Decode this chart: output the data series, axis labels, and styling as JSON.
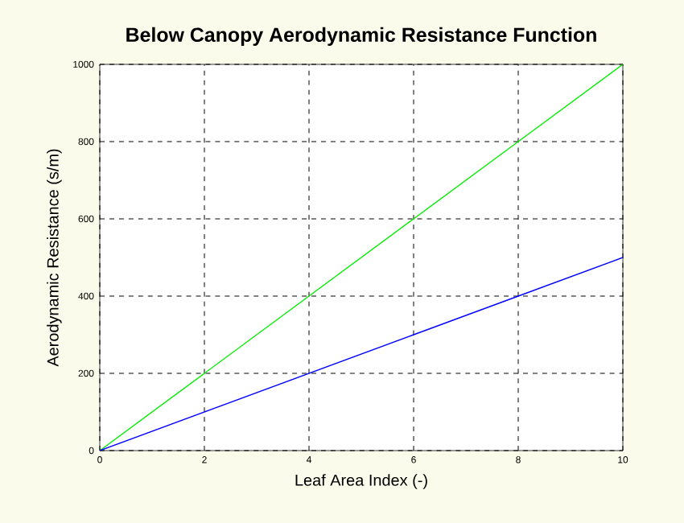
{
  "chart_data": {
    "type": "line",
    "title": "Below Canopy Aerodynamic Resistance Function",
    "xlabel": "Leaf Area Index (-)",
    "ylabel": "Aerodynamic Resistance (s/m)",
    "x": [
      0,
      2,
      4,
      6,
      8,
      10
    ],
    "series": [
      {
        "color": "#00ee00",
        "values": [
          0,
          200,
          400,
          600,
          800,
          1000
        ]
      },
      {
        "color": "#0000ff",
        "values": [
          0,
          100,
          200,
          300,
          400,
          500
        ]
      }
    ],
    "xlim": [
      0,
      10
    ],
    "ylim": [
      0,
      1000
    ],
    "xticks": [
      0,
      2,
      4,
      6,
      8,
      10
    ],
    "yticks": [
      0,
      200,
      400,
      600,
      800,
      1000
    ],
    "grid": true,
    "marker": "none",
    "line_style": "solid"
  }
}
